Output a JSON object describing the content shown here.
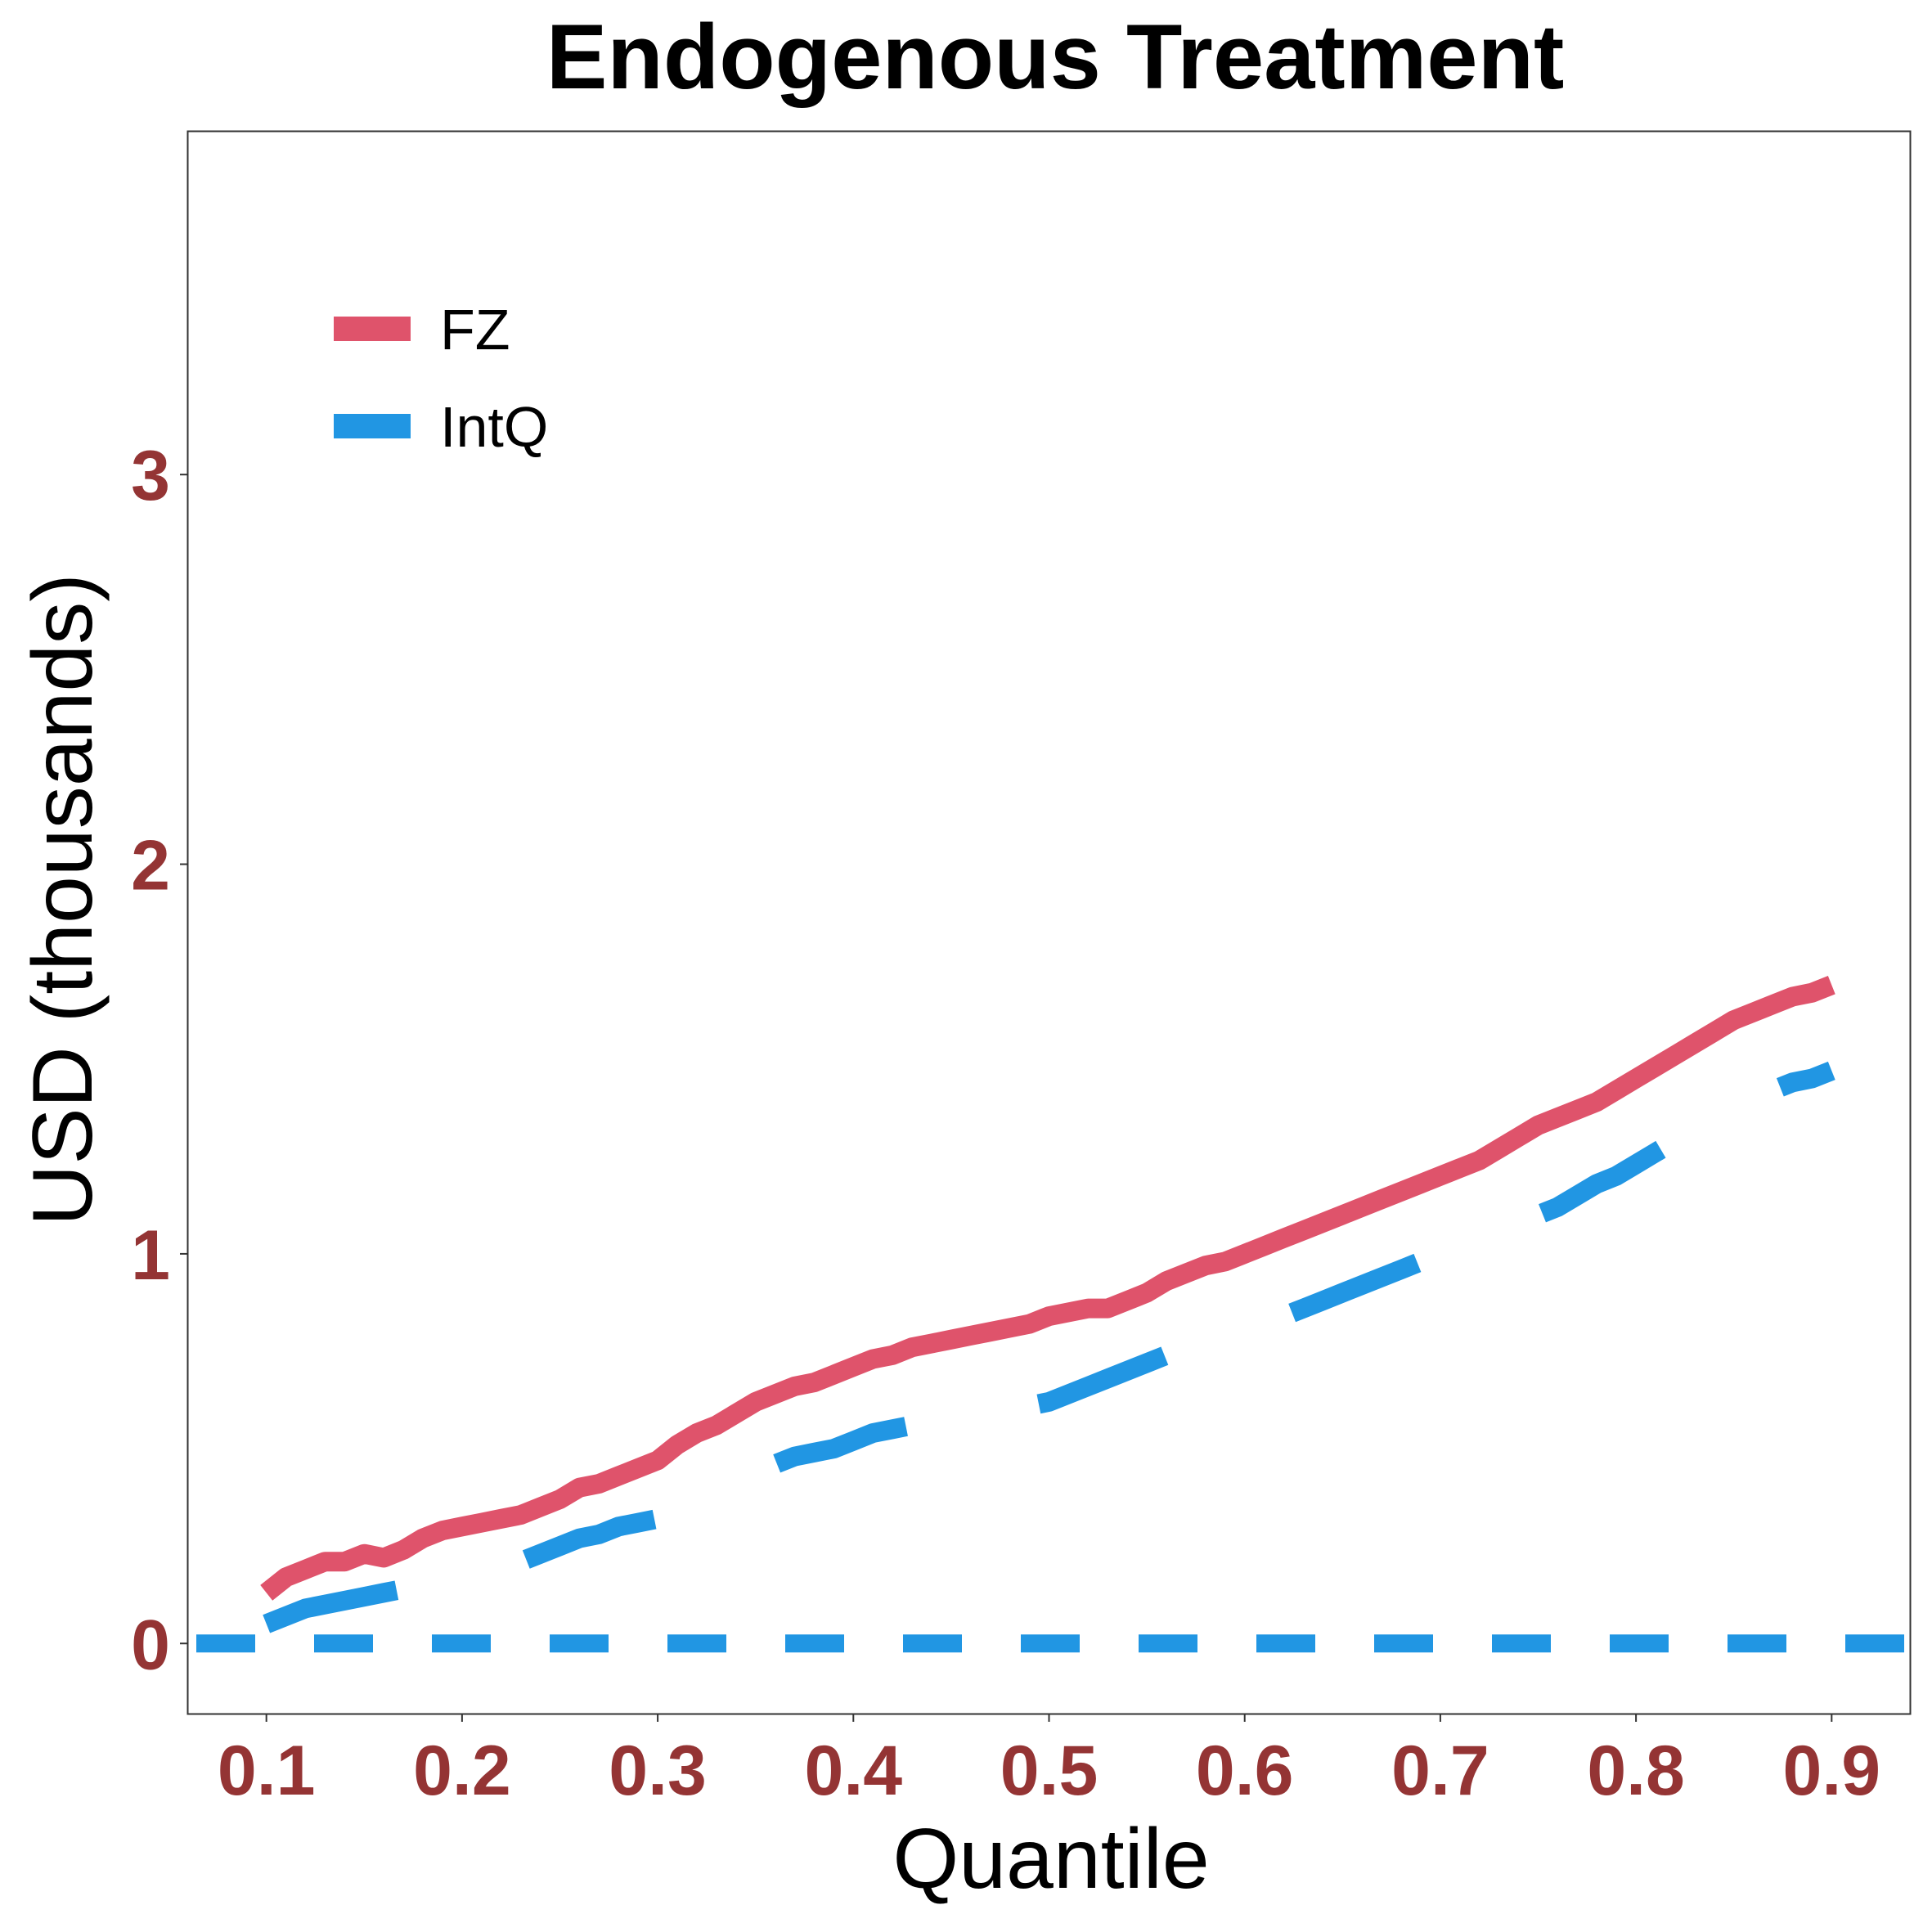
{
  "chart_data": {
    "type": "line",
    "title": "Endogenous Treatment",
    "xlabel": "Quantile",
    "ylabel": "USD (thousands)",
    "xlim": [
      0.06,
      0.94
    ],
    "ylim": [
      -0.18,
      3.88
    ],
    "x_ticks": [
      0.1,
      0.2,
      0.3,
      0.4,
      0.5,
      0.6,
      0.7,
      0.8,
      0.9
    ],
    "x_tick_labels": [
      "0.1",
      "0.2",
      "0.3",
      "0.4",
      "0.5",
      "0.6",
      "0.7",
      "0.8",
      "0.9"
    ],
    "y_ticks": [
      0,
      1,
      2,
      3
    ],
    "y_tick_labels": [
      "0",
      "1",
      "2",
      "3"
    ],
    "grid": false,
    "legend_position": "top-left",
    "tick_label_color": "#943434",
    "reference_line": {
      "y": 0,
      "color": "#2196E3",
      "style": "dashed"
    },
    "x": [
      0.1,
      0.11,
      0.12,
      0.13,
      0.14,
      0.15,
      0.16,
      0.17,
      0.18,
      0.19,
      0.2,
      0.21,
      0.22,
      0.23,
      0.24,
      0.25,
      0.26,
      0.27,
      0.28,
      0.29,
      0.3,
      0.31,
      0.32,
      0.33,
      0.34,
      0.35,
      0.36,
      0.37,
      0.38,
      0.39,
      0.4,
      0.41,
      0.42,
      0.43,
      0.44,
      0.45,
      0.46,
      0.47,
      0.48,
      0.49,
      0.5,
      0.51,
      0.52,
      0.53,
      0.54,
      0.55,
      0.56,
      0.57,
      0.58,
      0.59,
      0.6,
      0.61,
      0.62,
      0.63,
      0.64,
      0.65,
      0.66,
      0.67,
      0.68,
      0.69,
      0.7,
      0.71,
      0.72,
      0.73,
      0.74,
      0.75,
      0.76,
      0.77,
      0.78,
      0.79,
      0.8,
      0.81,
      0.82,
      0.83,
      0.84,
      0.85,
      0.86,
      0.87,
      0.88,
      0.89,
      0.9
    ],
    "series": [
      {
        "name": "FZ",
        "color": "#DF536B",
        "style": "solid",
        "values": [
          0.13,
          0.17,
          0.19,
          0.21,
          0.21,
          0.23,
          0.22,
          0.24,
          0.27,
          0.29,
          0.3,
          0.31,
          0.32,
          0.33,
          0.35,
          0.37,
          0.4,
          0.41,
          0.43,
          0.45,
          0.47,
          0.51,
          0.54,
          0.56,
          0.59,
          0.62,
          0.64,
          0.66,
          0.67,
          0.69,
          0.71,
          0.73,
          0.74,
          0.76,
          0.77,
          0.78,
          0.79,
          0.8,
          0.81,
          0.82,
          0.84,
          0.85,
          0.86,
          0.86,
          0.88,
          0.9,
          0.93,
          0.95,
          0.97,
          0.98,
          1.0,
          1.02,
          1.04,
          1.06,
          1.08,
          1.1,
          1.12,
          1.14,
          1.16,
          1.18,
          1.2,
          1.22,
          1.24,
          1.27,
          1.3,
          1.33,
          1.35,
          1.37,
          1.39,
          1.42,
          1.45,
          1.48,
          1.51,
          1.54,
          1.57,
          1.6,
          1.62,
          1.64,
          1.66,
          1.67,
          1.69
        ]
      },
      {
        "name": "IntQ",
        "color": "#2196E3",
        "style": "dashed",
        "values": [
          0.05,
          0.07,
          0.09,
          0.1,
          0.11,
          0.12,
          0.13,
          0.14,
          0.15,
          0.15,
          0.15,
          0.17,
          0.19,
          0.21,
          0.23,
          0.25,
          0.27,
          0.28,
          0.3,
          0.31,
          0.32,
          0.35,
          0.37,
          0.39,
          0.41,
          0.44,
          0.46,
          0.48,
          0.49,
          0.5,
          0.52,
          0.54,
          0.55,
          0.56,
          0.56,
          0.57,
          0.58,
          0.59,
          0.6,
          0.61,
          0.62,
          0.64,
          0.66,
          0.68,
          0.7,
          0.72,
          0.74,
          0.76,
          0.77,
          0.79,
          0.8,
          0.82,
          0.84,
          0.86,
          0.88,
          0.9,
          0.92,
          0.94,
          0.96,
          0.98,
          0.99,
          1.01,
          1.03,
          1.05,
          1.08,
          1.1,
          1.12,
          1.15,
          1.18,
          1.2,
          1.23,
          1.26,
          1.29,
          1.31,
          1.34,
          1.37,
          1.4,
          1.42,
          1.44,
          1.45,
          1.47
        ]
      }
    ]
  }
}
